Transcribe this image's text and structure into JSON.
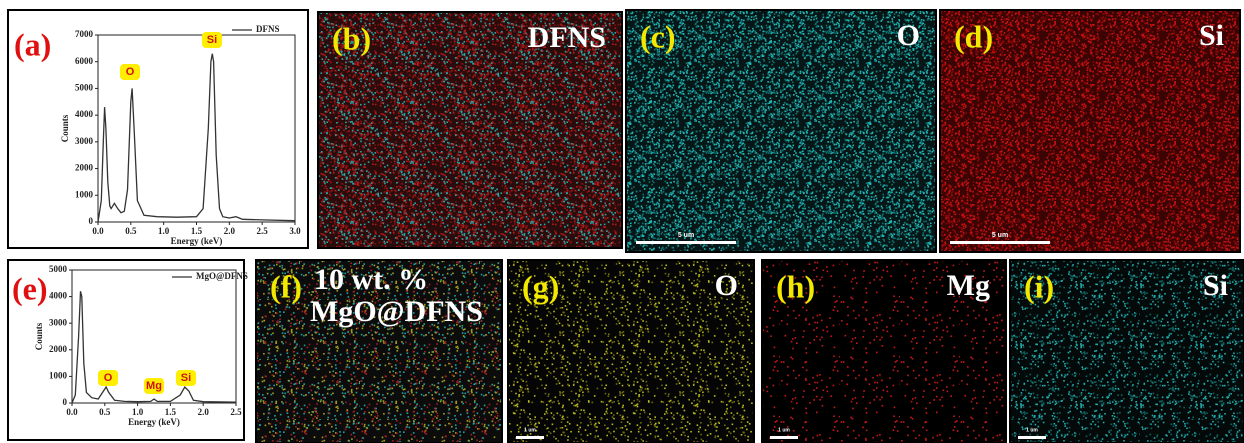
{
  "chart_data": [
    {
      "type": "line",
      "panel": "(a)",
      "x_label": "Energy (keV)",
      "y_label": "Counts",
      "x": [
        0,
        0.05,
        0.08,
        0.1,
        0.12,
        0.15,
        0.18,
        0.2,
        0.25,
        0.3,
        0.35,
        0.4,
        0.45,
        0.5,
        0.52,
        0.55,
        0.6,
        0.7,
        0.9,
        1.2,
        1.5,
        1.6,
        1.68,
        1.72,
        1.74,
        1.76,
        1.8,
        1.85,
        1.9,
        2.0,
        2.1,
        2.15,
        2.2,
        2.5,
        3.0
      ],
      "series": [
        {
          "name": "DFNS",
          "color": "#333333",
          "values": [
            0,
            800,
            3000,
            4300,
            3500,
            1500,
            600,
            500,
            700,
            500,
            350,
            400,
            1200,
            4500,
            5000,
            3500,
            800,
            250,
            200,
            180,
            200,
            500,
            3500,
            6000,
            6300,
            6000,
            2500,
            500,
            200,
            150,
            200,
            150,
            100,
            80,
            50
          ]
        }
      ],
      "annotations": [
        "O",
        "Si"
      ],
      "xlim": [
        0,
        3
      ],
      "ylim": [
        0,
        7000
      ],
      "xticks": [
        {
          "value": 0,
          "label": "0.0"
        },
        0.5,
        {
          "value": 1,
          "label": "1.0"
        },
        1.5,
        {
          "value": 2,
          "label": "2.0"
        },
        2.5,
        {
          "value": 3,
          "label": "3.0"
        }
      ],
      "yticks": [
        0,
        1000,
        2000,
        3000,
        4000,
        5000,
        6000,
        7000
      ]
    },
    {
      "type": "line",
      "panel": "(e)",
      "x_label": "Energy (keV)",
      "y_label": "Counts",
      "x": [
        0,
        0.05,
        0.1,
        0.13,
        0.15,
        0.18,
        0.22,
        0.3,
        0.4,
        0.48,
        0.52,
        0.56,
        0.65,
        0.8,
        1.0,
        1.2,
        1.25,
        1.3,
        1.5,
        1.65,
        1.72,
        1.78,
        1.85,
        2.0,
        2.5
      ],
      "series": [
        {
          "name": "MgO@DFNS",
          "color": "#333333",
          "values": [
            0,
            300,
            2500,
            4200,
            4000,
            1500,
            400,
            200,
            150,
            450,
            600,
            400,
            100,
            60,
            50,
            60,
            150,
            60,
            60,
            300,
            600,
            450,
            100,
            50,
            30
          ]
        }
      ],
      "annotations": [
        "O",
        "Mg",
        "Si"
      ],
      "xlim": [
        0,
        2.5
      ],
      "ylim": [
        0,
        5000
      ],
      "xticks": [
        {
          "value": 0,
          "label": "0.0"
        },
        0.5,
        {
          "value": 1,
          "label": "1.0"
        },
        1.5,
        {
          "value": 2,
          "label": "2.0"
        },
        2.5
      ],
      "yticks": [
        0,
        1000,
        2000,
        3000,
        4000,
        5000
      ]
    }
  ],
  "maps": [
    {
      "panel": "(b)",
      "title": [
        "DFNS"
      ]
    },
    {
      "panel": "(c)",
      "title": [
        "O"
      ],
      "scale_bar": "5 um"
    },
    {
      "panel": "(d)",
      "title": [
        "Si"
      ],
      "scale_bar": "5 um"
    },
    {
      "panel": "(f)",
      "title": [
        "10 wt. %",
        "MgO@DFNS"
      ]
    },
    {
      "panel": "(g)",
      "title": [
        "O"
      ],
      "scale_bar": "1 um"
    },
    {
      "panel": "(h)",
      "title": [
        "Mg"
      ],
      "scale_bar": "1 um"
    },
    {
      "panel": "(i)",
      "title": [
        "Si"
      ],
      "scale_bar": "1 um"
    }
  ]
}
